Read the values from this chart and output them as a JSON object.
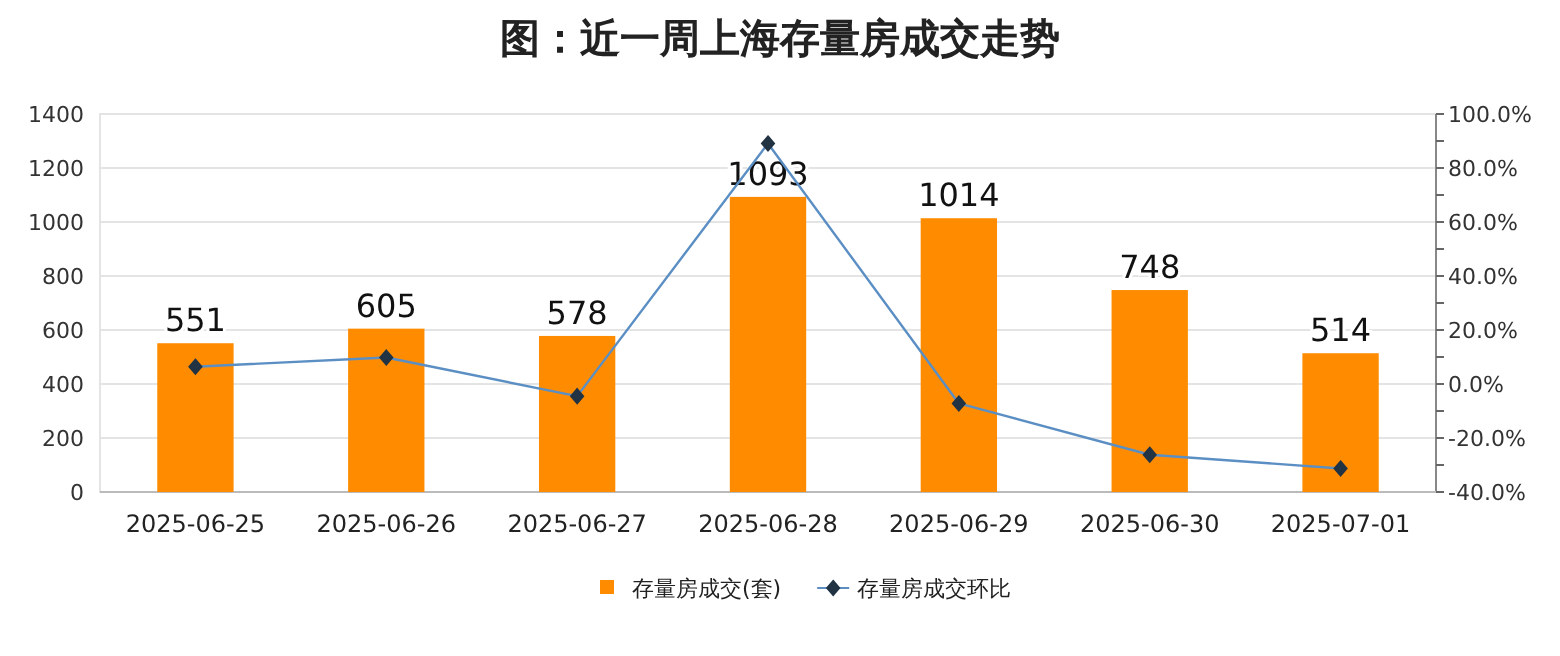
{
  "chart_data": {
    "type": "bar",
    "title": "图：近一周上海存量房成交走势",
    "categories": [
      "2025-06-25",
      "2025-06-26",
      "2025-06-27",
      "2025-06-28",
      "2025-06-29",
      "2025-06-30",
      "2025-07-01"
    ],
    "series": [
      {
        "name": "存量房成交(套)",
        "color": "#ff8c00",
        "values": [
          551,
          605,
          578,
          1093,
          1014,
          748,
          514
        ],
        "data_labels": true
      },
      {
        "name": "存量房成交环比",
        "type": "line",
        "axis": "y2",
        "color": "#5b8fc4",
        "marker": "diamond",
        "values": [
          6.4,
          9.8,
          -4.5,
          89.1,
          -7.2,
          -26.2,
          -31.3
        ]
      }
    ],
    "ylim": [
      0,
      1400
    ],
    "yticks": [
      0,
      200,
      400,
      600,
      800,
      1000,
      1200,
      1400
    ],
    "y2lim": [
      -40,
      100
    ],
    "y2ticks": [
      {
        "value": -40,
        "label": "-40.0%"
      },
      {
        "value": -30,
        "label": null
      },
      {
        "value": -20,
        "label": "-20.0%"
      },
      {
        "value": -10,
        "label": null
      },
      {
        "value": 0,
        "label": "0.0%"
      },
      {
        "value": 10,
        "label": null
      },
      {
        "value": 20,
        "label": "20.0%"
      },
      {
        "value": 30,
        "label": null
      },
      {
        "value": 40,
        "label": "40.0%"
      },
      {
        "value": 50,
        "label": null
      },
      {
        "value": 60,
        "label": "60.0%"
      },
      {
        "value": 70,
        "label": null
      },
      {
        "value": 80,
        "label": "80.0%"
      },
      {
        "value": 90,
        "label": null
      },
      {
        "value": 100,
        "label": "100.0%"
      }
    ],
    "grid": "y",
    "legend": "bottom"
  }
}
